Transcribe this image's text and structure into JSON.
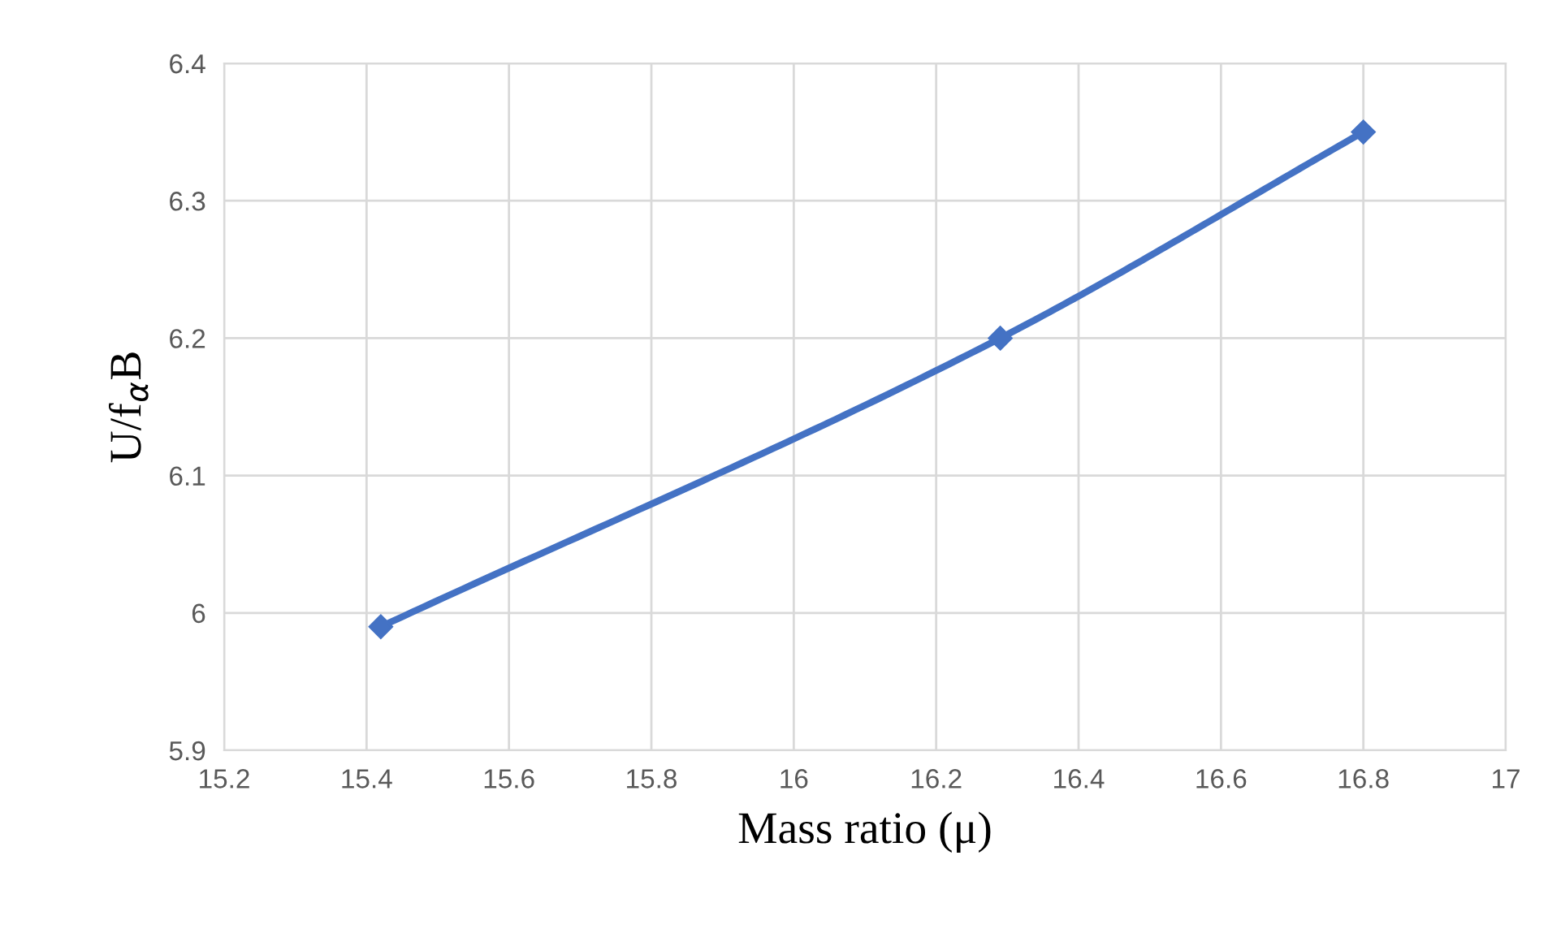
{
  "chart_data": {
    "type": "line",
    "xlabel": "Mass ratio (μ)",
    "ylabel": "U/f$_{α}$B",
    "x": [
      15.42,
      16.29,
      16.8
    ],
    "series": [
      {
        "color": "#4472c4",
        "values": [
          5.99,
          6.2,
          6.35
        ]
      }
    ],
    "xlim": [
      15.2,
      17
    ],
    "xticks": [
      15.2,
      15.4,
      15.6,
      15.8,
      16,
      16.2,
      16.4,
      16.6,
      16.8,
      17
    ],
    "ylim": [
      5.9,
      6.4
    ],
    "yticks": [
      5.9,
      6,
      6.1,
      6.2,
      6.3,
      6.4
    ],
    "grid": true,
    "marker": "diamond",
    "line_style": "solid"
  }
}
